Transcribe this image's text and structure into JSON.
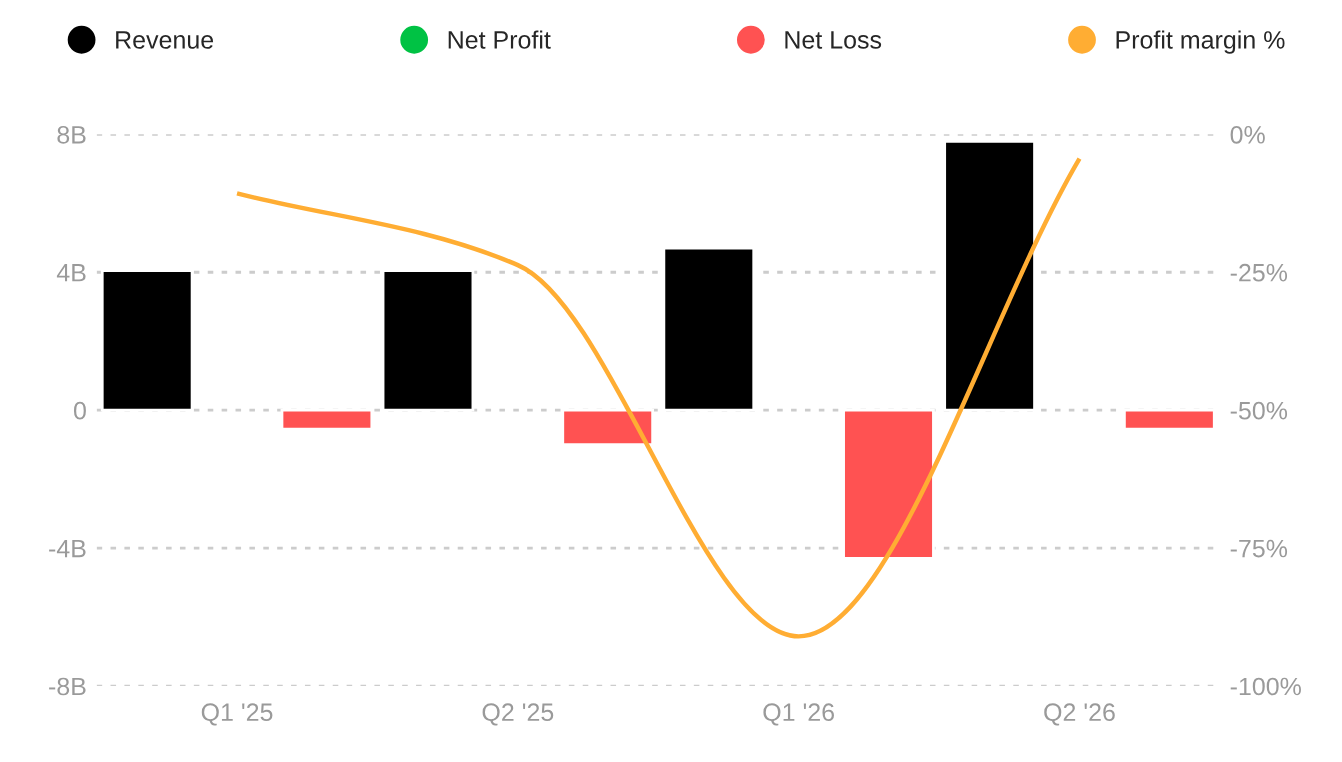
{
  "chart_data": {
    "type": "bar",
    "categories": [
      "Q1 '25",
      "Q2 '25",
      "Q1 '26",
      "Q2 '26"
    ],
    "series": [
      {
        "name": "Revenue",
        "color": "#000000",
        "values": [
          4.05,
          4.05,
          4.7,
          7.8
        ]
      },
      {
        "name": "Net Profit",
        "color": "#00c244",
        "values": [
          null,
          null,
          null,
          null
        ]
      },
      {
        "name": "Net Loss",
        "color": "#ff5252",
        "values": [
          -0.55,
          -1.0,
          -4.3,
          -0.55
        ]
      },
      {
        "name": "Profit margin %",
        "type": "line",
        "axis": "y2",
        "color": "#ffad33",
        "marker": "none",
        "values": [
          -10.7,
          -23.7,
          -91,
          -4.4
        ]
      }
    ],
    "ylim": [
      -8,
      8
    ],
    "yticks": [
      {
        "value": -8,
        "label": "-8B"
      },
      {
        "value": -4,
        "label": "-4B"
      },
      0,
      {
        "value": 4,
        "label": "4B"
      },
      {
        "value": 8,
        "label": "8B"
      }
    ],
    "y2lim": [
      -100,
      0
    ],
    "y2ticks": [
      {
        "value": -100,
        "label": "-100%"
      },
      {
        "value": -75,
        "label": "-75%"
      },
      {
        "value": -50,
        "label": "-50%"
      },
      {
        "value": -25,
        "label": "-25%"
      },
      {
        "value": 0,
        "label": "0%"
      }
    ],
    "grid": "y",
    "legend": "top"
  }
}
